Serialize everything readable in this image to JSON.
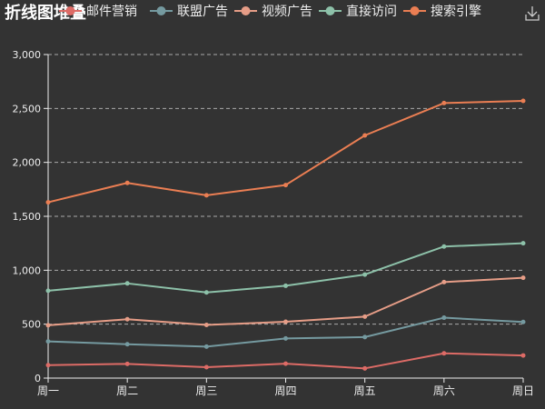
{
  "chart_data": {
    "type": "line",
    "stacked": true,
    "title": "折线图堆叠",
    "categories": [
      "周一",
      "周二",
      "周三",
      "周四",
      "周五",
      "周六",
      "周日"
    ],
    "yticks": [
      "0",
      "500",
      "1,000",
      "1,500",
      "2,000",
      "2,500",
      "3,000"
    ],
    "ylim": [
      0,
      3000
    ],
    "grid": true,
    "legend_position": "top",
    "series": [
      {
        "name": "邮件营销",
        "color": "#dd6b66",
        "values": [
          120,
          132,
          101,
          134,
          90,
          230,
          210
        ]
      },
      {
        "name": "联盟广告",
        "color": "#759aa0",
        "values": [
          220,
          182,
          191,
          234,
          290,
          330,
          310
        ]
      },
      {
        "name": "视频广告",
        "color": "#e69d87",
        "values": [
          150,
          232,
          201,
          154,
          190,
          330,
          410
        ]
      },
      {
        "name": "直接访问",
        "color": "#8dc1a9",
        "values": [
          320,
          332,
          301,
          334,
          390,
          330,
          320
        ]
      },
      {
        "name": "搜索引擎",
        "color": "#ea7e53",
        "values": [
          820,
          932,
          901,
          934,
          1290,
          1330,
          1320
        ]
      }
    ]
  },
  "toolbox": {
    "save_icon": "download-icon"
  }
}
